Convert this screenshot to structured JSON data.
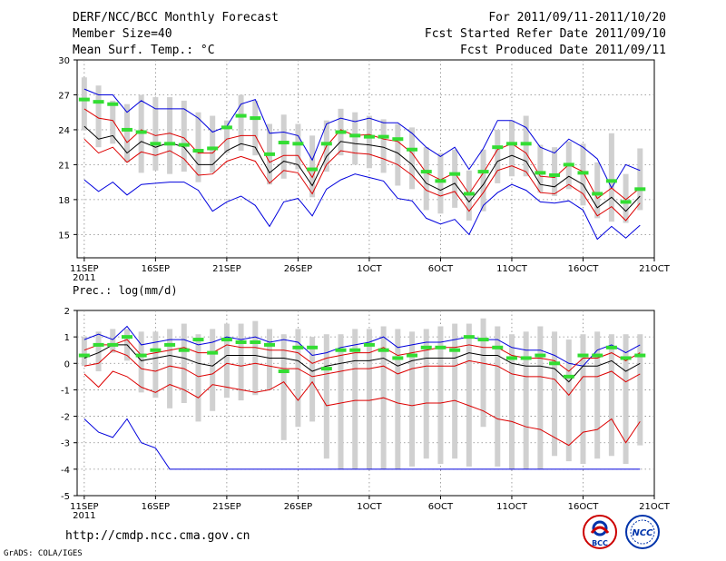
{
  "header": {
    "title": "DERF/NCC/BCC Monthly Forecast",
    "member": "Member Size=40",
    "variable": "Mean Surf. Temp.: °C",
    "forecast_for": "For 2011/09/11-2011/10/20",
    "started": "Fcst Started Refer Date 2011/09/10",
    "produced": "Fcst Produced Date 2011/09/11"
  },
  "footer": {
    "url": "http://cmdp.ncc.cma.gov.cn",
    "credit": "GrADS: COLA/IGES",
    "logo1_text": "BCC",
    "logo2_text": "NCC"
  },
  "colors": {
    "envelope": "#0000dd",
    "quartile": "#dd0000",
    "mean": "#000000",
    "obs": "#33dd33",
    "box": "#d0d0d0",
    "grid": "#888888"
  },
  "chart_data": [
    {
      "type": "line",
      "title": "Mean Surf. Temp.: °C",
      "ylim": [
        13,
        30
      ],
      "yticks": [
        15,
        18,
        21,
        24,
        27,
        30
      ],
      "xlim": [
        0.5,
        41
      ],
      "xticks": [
        1,
        6,
        11,
        16,
        21,
        26,
        31,
        36,
        41
      ],
      "xticklabels": [
        "11SEP",
        "16SEP",
        "21SEP",
        "26SEP",
        "1OCT",
        "6OCT",
        "11OCT",
        "16OCT",
        "21OCT"
      ],
      "year_label": "2011",
      "x": [
        1,
        2,
        3,
        4,
        5,
        6,
        7,
        8,
        9,
        10,
        11,
        12,
        13,
        14,
        15,
        16,
        17,
        18,
        19,
        20,
        21,
        22,
        23,
        24,
        25,
        26,
        27,
        28,
        29,
        30,
        31,
        32,
        33,
        34,
        35,
        36,
        37,
        38,
        39,
        40
      ],
      "series": [
        {
          "name": "max",
          "values": [
            27.5,
            27.0,
            27.0,
            25.5,
            26.5,
            25.8,
            25.8,
            25.8,
            25.0,
            23.8,
            24.3,
            26.2,
            26.6,
            23.7,
            23.8,
            23.5,
            21.4,
            24.5,
            25.0,
            24.7,
            25.0,
            24.6,
            24.6,
            23.7,
            22.5,
            21.7,
            22.5,
            20.6,
            22.4,
            24.8,
            24.8,
            24.2,
            22.5,
            22.0,
            23.2,
            22.5,
            21.5,
            19.0,
            21.0,
            20.5
          ]
        },
        {
          "name": "q3",
          "values": [
            25.8,
            25.0,
            24.8,
            22.9,
            24.0,
            23.5,
            23.7,
            23.3,
            22.0,
            22.0,
            23.2,
            23.5,
            23.5,
            21.2,
            21.8,
            21.8,
            19.9,
            22.6,
            24.0,
            23.5,
            23.6,
            23.2,
            23.0,
            22.0,
            20.3,
            19.7,
            20.3,
            18.5,
            20.3,
            22.3,
            22.8,
            22.0,
            20.0,
            19.9,
            21.0,
            20.4,
            18.1,
            19.0,
            18.0,
            19.0
          ]
        },
        {
          "name": "mean",
          "values": [
            24.3,
            23.2,
            23.5,
            22.0,
            23.0,
            22.5,
            22.9,
            22.5,
            21.0,
            21.0,
            22.2,
            22.8,
            22.5,
            20.3,
            21.3,
            21.0,
            19.2,
            21.7,
            23.0,
            22.8,
            22.7,
            22.5,
            22.0,
            21.0,
            19.4,
            18.8,
            19.4,
            17.8,
            19.3,
            21.3,
            21.8,
            21.3,
            19.3,
            19.1,
            20.0,
            19.3,
            17.3,
            18.2,
            17.0,
            18.3
          ]
        },
        {
          "name": "q1",
          "values": [
            23.2,
            22.0,
            22.5,
            21.2,
            22.1,
            21.8,
            22.2,
            21.5,
            20.1,
            20.2,
            21.3,
            21.7,
            21.3,
            19.4,
            20.5,
            20.3,
            18.5,
            21.0,
            22.2,
            22.0,
            21.9,
            21.5,
            21.0,
            20.1,
            18.8,
            18.3,
            18.7,
            17.0,
            18.6,
            20.5,
            20.9,
            20.4,
            18.6,
            18.5,
            19.3,
            18.5,
            16.6,
            17.4,
            16.2,
            17.7
          ]
        },
        {
          "name": "min",
          "values": [
            19.7,
            18.7,
            19.5,
            18.4,
            19.3,
            19.4,
            19.5,
            19.5,
            18.8,
            17.0,
            17.8,
            18.3,
            17.5,
            15.7,
            17.8,
            18.1,
            16.6,
            18.9,
            19.7,
            20.2,
            19.9,
            19.6,
            18.1,
            17.9,
            16.4,
            15.9,
            16.3,
            15.0,
            17.5,
            18.6,
            19.3,
            18.8,
            17.8,
            17.7,
            17.9,
            17.1,
            14.6,
            15.7,
            14.7,
            15.8
          ]
        },
        {
          "name": "obs",
          "values": [
            26.6,
            26.4,
            26.2,
            24.0,
            23.8,
            22.8,
            22.8,
            22.7,
            22.2,
            22.4,
            24.2,
            25.2,
            25.0,
            21.9,
            22.9,
            22.8,
            20.6,
            22.8,
            23.8,
            23.5,
            23.4,
            23.4,
            23.2,
            22.3,
            20.4,
            19.6,
            20.2,
            18.5,
            20.4,
            22.5,
            22.8,
            22.8,
            20.3,
            20.1,
            21.0,
            20.3,
            18.5,
            19.6,
            17.8,
            18.9
          ]
        },
        {
          "name": "box_top",
          "values": [
            28.5,
            27.8,
            26.5,
            26.2,
            27.0,
            26.8,
            26.8,
            26.5,
            25.5,
            25.2,
            24.8,
            27.0,
            26.5,
            24.5,
            25.3,
            24.5,
            23.5,
            24.8,
            25.8,
            25.5,
            25.2,
            24.9,
            24.5,
            24.2,
            22.5,
            22.0,
            22.3,
            20.5,
            22.3,
            24.0,
            24.8,
            25.2,
            22.7,
            22.5,
            23.0,
            22.8,
            21.2,
            23.7,
            20.2,
            22.4
          ]
        },
        {
          "name": "box_bottom",
          "values": [
            24.0,
            22.5,
            22.8,
            21.2,
            20.3,
            20.5,
            20.2,
            20.4,
            19.5,
            20.3,
            22.0,
            22.2,
            21.8,
            19.3,
            19.8,
            20.6,
            18.2,
            20.4,
            21.8,
            21.0,
            20.7,
            20.3,
            19.2,
            18.9,
            17.1,
            16.8,
            17.3,
            16.2,
            17.0,
            19.4,
            20.0,
            20.0,
            18.6,
            18.3,
            18.9,
            17.5,
            16.4,
            16.1,
            16.0,
            17.1
          ]
        }
      ]
    },
    {
      "type": "line",
      "title": "Prec.: log(mm/d)",
      "ylim": [
        -5,
        2
      ],
      "yticks": [
        -5,
        -4,
        -3,
        -2,
        -1,
        0,
        1,
        2
      ],
      "xlim": [
        0.5,
        41
      ],
      "xticks": [
        1,
        6,
        11,
        16,
        21,
        26,
        31,
        36,
        41
      ],
      "xticklabels": [
        "11SEP",
        "16SEP",
        "21SEP",
        "26SEP",
        "1OCT",
        "6OCT",
        "11OCT",
        "16OCT",
        "21OCT"
      ],
      "year_label": "2011",
      "x": [
        1,
        2,
        3,
        4,
        5,
        6,
        7,
        8,
        9,
        10,
        11,
        12,
        13,
        14,
        15,
        16,
        17,
        18,
        19,
        20,
        21,
        22,
        23,
        24,
        25,
        26,
        27,
        28,
        29,
        30,
        31,
        32,
        33,
        34,
        35,
        36,
        37,
        38,
        39,
        40
      ],
      "series": [
        {
          "name": "max",
          "values": [
            0.9,
            1.1,
            0.9,
            1.4,
            0.7,
            0.8,
            0.9,
            0.9,
            0.7,
            0.8,
            1.0,
            0.9,
            1.0,
            0.8,
            0.9,
            0.8,
            0.3,
            0.4,
            0.6,
            0.7,
            0.8,
            1.0,
            0.6,
            0.7,
            0.8,
            0.8,
            0.9,
            1.0,
            0.9,
            0.9,
            0.6,
            0.5,
            0.5,
            0.3,
            0.0,
            -0.1,
            0.5,
            0.7,
            0.4,
            0.7
          ]
        },
        {
          "name": "q3",
          "values": [
            0.5,
            0.7,
            0.7,
            0.9,
            0.3,
            0.4,
            0.5,
            0.6,
            0.4,
            0.4,
            0.7,
            0.6,
            0.6,
            0.5,
            0.5,
            0.4,
            0.0,
            0.2,
            0.3,
            0.4,
            0.4,
            0.6,
            0.3,
            0.4,
            0.5,
            0.6,
            0.6,
            0.7,
            0.6,
            0.6,
            0.3,
            0.2,
            0.2,
            0.1,
            -0.3,
            0.2,
            0.2,
            0.4,
            0.1,
            0.4
          ]
        },
        {
          "name": "mean",
          "values": [
            0.2,
            0.4,
            0.7,
            0.7,
            0.1,
            0.2,
            0.3,
            0.2,
            0.0,
            -0.1,
            0.3,
            0.3,
            0.3,
            0.2,
            0.2,
            0.1,
            -0.3,
            -0.1,
            0.0,
            0.1,
            0.1,
            0.2,
            -0.1,
            0.1,
            0.2,
            0.2,
            0.2,
            0.4,
            0.3,
            0.3,
            0.0,
            -0.1,
            -0.1,
            -0.2,
            -0.7,
            -0.1,
            -0.1,
            0.1,
            -0.3,
            0.0
          ]
        },
        {
          "name": "q1",
          "values": [
            -0.1,
            0.0,
            0.5,
            0.3,
            -0.2,
            -0.3,
            -0.1,
            -0.2,
            -0.5,
            -0.4,
            0.0,
            -0.1,
            0.0,
            -0.1,
            -0.2,
            -0.2,
            -0.5,
            -0.4,
            -0.3,
            -0.2,
            -0.2,
            -0.1,
            -0.4,
            -0.2,
            -0.1,
            -0.1,
            -0.1,
            0.1,
            0.0,
            -0.1,
            -0.4,
            -0.5,
            -0.5,
            -0.6,
            -1.2,
            -0.5,
            -0.5,
            -0.3,
            -0.7,
            -0.4
          ]
        },
        {
          "name": "min",
          "values": [
            -2.1,
            -2.6,
            -2.8,
            -2.1,
            -3.0,
            -3.2,
            -4.0,
            -4.0,
            -4.0,
            -4.0,
            -4.0,
            -4.0,
            -4.0,
            -4.0,
            -4.0,
            -4.0,
            -4.0,
            -4.0,
            -4.0,
            -4.0,
            -4.0,
            -4.0,
            -4.0,
            -4.0,
            -4.0,
            -4.0,
            -4.0,
            -4.0,
            -4.0,
            -4.0,
            -4.0,
            -4.0,
            -4.0,
            -4.0,
            -4.0,
            -4.0,
            -4.0,
            -4.0,
            -4.0,
            -4.0
          ]
        },
        {
          "name": "q0",
          "values": [
            -0.4,
            -0.9,
            -0.3,
            -0.5,
            -0.9,
            -1.1,
            -0.8,
            -1.0,
            -1.3,
            -0.8,
            -0.9,
            -1.0,
            -1.1,
            -1.0,
            -0.7,
            -1.4,
            -0.7,
            -1.6,
            -1.5,
            -1.4,
            -1.4,
            -1.3,
            -1.5,
            -1.6,
            -1.5,
            -1.5,
            -1.4,
            -1.6,
            -1.8,
            -2.1,
            -2.2,
            -2.4,
            -2.5,
            -2.8,
            -3.1,
            -2.6,
            -2.5,
            -2.1,
            -3.0,
            -2.2
          ]
        },
        {
          "name": "obs",
          "values": [
            0.3,
            0.7,
            0.7,
            1.0,
            0.3,
            0.5,
            0.7,
            0.5,
            0.9,
            0.4,
            0.9,
            0.8,
            0.8,
            0.7,
            -0.3,
            0.6,
            0.6,
            -0.2,
            0.5,
            0.5,
            0.7,
            0.5,
            0.2,
            0.3,
            0.6,
            0.6,
            0.5,
            1.0,
            0.9,
            0.6,
            0.2,
            0.2,
            0.3,
            0.0,
            -0.5,
            0.3,
            0.3,
            0.6,
            0.2,
            0.3
          ]
        },
        {
          "name": "box_top",
          "values": [
            1.0,
            1.2,
            1.3,
            1.3,
            1.2,
            1.2,
            1.3,
            1.5,
            1.1,
            1.3,
            1.5,
            1.5,
            1.6,
            1.3,
            1.1,
            1.3,
            1.0,
            1.1,
            1.1,
            1.3,
            1.3,
            1.4,
            1.3,
            1.2,
            1.3,
            1.4,
            1.5,
            1.5,
            1.7,
            1.4,
            1.1,
            1.2,
            1.4,
            1.2,
            0.9,
            1.1,
            1.2,
            1.1,
            1.1,
            1.1
          ]
        },
        {
          "name": "box_bottom",
          "values": [
            -0.1,
            -0.3,
            0.4,
            0.1,
            -1.1,
            -1.3,
            -1.7,
            -1.5,
            -2.2,
            -1.8,
            -1.3,
            -1.4,
            -1.2,
            -1.0,
            -2.9,
            -2.4,
            -2.2,
            -3.6,
            -4.0,
            -4.0,
            -4.0,
            -4.0,
            -4.0,
            -3.9,
            -3.6,
            -3.8,
            -3.6,
            -3.9,
            -2.4,
            -3.9,
            -4.0,
            -4.0,
            -4.0,
            -3.5,
            -3.7,
            -3.8,
            -3.6,
            -3.5,
            -3.8,
            -3.1
          ]
        }
      ]
    }
  ]
}
